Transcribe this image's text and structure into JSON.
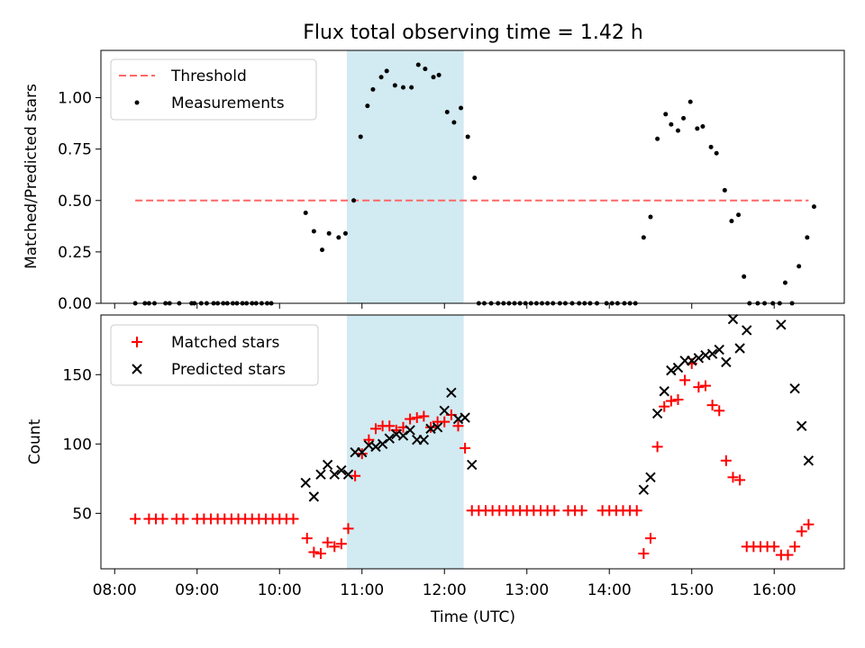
{
  "chart_data": [
    {
      "type": "scatter",
      "title": "Flux total observing time = 1.42 h",
      "xlabel": "",
      "ylabel": "Matched/Predicted stars",
      "xlim": [
        "07:50",
        "16:51"
      ],
      "ylim": [
        0,
        1.23
      ],
      "yticks": [
        0.0,
        0.25,
        0.5,
        0.75,
        1.0
      ],
      "ytick_labels": [
        "0.00",
        "0.25",
        "0.50",
        "0.75",
        "1.00"
      ],
      "shaded_span": [
        "10:49",
        "12:14"
      ],
      "shaded_color": "#add8e6",
      "legend_position": "upper left",
      "series": [
        {
          "name": "Threshold",
          "kind": "line",
          "color": "#ff6666",
          "style": "dashed",
          "points": [
            [
              "08:15",
              0.5
            ],
            [
              "16:25",
              0.5
            ]
          ]
        },
        {
          "name": "Measurements",
          "kind": "scatter",
          "marker": "dot",
          "color": "#000000",
          "points": [
            [
              "08:15",
              0
            ],
            [
              "08:22",
              0
            ],
            [
              "08:25",
              0
            ],
            [
              "08:29",
              0
            ],
            [
              "08:37",
              0
            ],
            [
              "08:40",
              0
            ],
            [
              "08:47",
              0
            ],
            [
              "08:56",
              0
            ],
            [
              "08:58",
              0
            ],
            [
              "09:03",
              0
            ],
            [
              "09:07",
              0
            ],
            [
              "09:12",
              0
            ],
            [
              "09:15",
              0
            ],
            [
              "09:19",
              0
            ],
            [
              "09:22",
              0
            ],
            [
              "09:26",
              0
            ],
            [
              "09:29",
              0
            ],
            [
              "09:33",
              0
            ],
            [
              "09:36",
              0
            ],
            [
              "09:40",
              0
            ],
            [
              "09:43",
              0
            ],
            [
              "09:47",
              0
            ],
            [
              "09:51",
              0
            ],
            [
              "09:54",
              0
            ],
            [
              "10:19",
              0.44
            ],
            [
              "10:25",
              0.35
            ],
            [
              "10:31",
              0.26
            ],
            [
              "10:36",
              0.34
            ],
            [
              "10:43",
              0.32
            ],
            [
              "10:48",
              0.34
            ],
            [
              "10:54",
              0.5
            ],
            [
              "10:59",
              0.81
            ],
            [
              "11:04",
              0.96
            ],
            [
              "11:08",
              1.04
            ],
            [
              "11:14",
              1.1
            ],
            [
              "11:18",
              1.13
            ],
            [
              "11:24",
              1.06
            ],
            [
              "11:30",
              1.05
            ],
            [
              "11:36",
              1.05
            ],
            [
              "11:41",
              1.16
            ],
            [
              "11:46",
              1.14
            ],
            [
              "11:52",
              1.1
            ],
            [
              "11:56",
              1.11
            ],
            [
              "12:02",
              0.93
            ],
            [
              "12:07",
              0.88
            ],
            [
              "12:12",
              0.95
            ],
            [
              "12:17",
              0.81
            ],
            [
              "12:22",
              0.61
            ],
            [
              "12:25",
              0
            ],
            [
              "12:29",
              0
            ],
            [
              "12:34",
              0
            ],
            [
              "12:39",
              0
            ],
            [
              "12:43",
              0
            ],
            [
              "12:47",
              0
            ],
            [
              "12:51",
              0
            ],
            [
              "12:55",
              0
            ],
            [
              "12:59",
              0
            ],
            [
              "13:03",
              0
            ],
            [
              "13:07",
              0
            ],
            [
              "13:11",
              0
            ],
            [
              "13:15",
              0
            ],
            [
              "13:19",
              0
            ],
            [
              "13:24",
              0
            ],
            [
              "13:28",
              0
            ],
            [
              "13:33",
              0
            ],
            [
              "13:38",
              0
            ],
            [
              "13:42",
              0
            ],
            [
              "13:46",
              0
            ],
            [
              "13:51",
              0
            ],
            [
              "13:58",
              0
            ],
            [
              "14:02",
              0
            ],
            [
              "14:06",
              0
            ],
            [
              "14:11",
              0
            ],
            [
              "14:15",
              0
            ],
            [
              "14:19",
              0
            ],
            [
              "14:25",
              0.32
            ],
            [
              "14:30",
              0.42
            ],
            [
              "14:35",
              0.8
            ],
            [
              "14:41",
              0.92
            ],
            [
              "14:45",
              0.87
            ],
            [
              "14:50",
              0.84
            ],
            [
              "14:54",
              0.9
            ],
            [
              "14:59",
              0.98
            ],
            [
              "15:04",
              0.85
            ],
            [
              "15:08",
              0.86
            ],
            [
              "15:14",
              0.76
            ],
            [
              "15:18",
              0.73
            ],
            [
              "15:24",
              0.55
            ],
            [
              "15:29",
              0.4
            ],
            [
              "15:34",
              0.43
            ],
            [
              "15:38",
              0.13
            ],
            [
              "15:42",
              0
            ],
            [
              "15:48",
              0
            ],
            [
              "15:53",
              0
            ],
            [
              "15:59",
              0
            ],
            [
              "16:04",
              0
            ],
            [
              "16:08",
              0.1
            ],
            [
              "16:13",
              0
            ],
            [
              "16:18",
              0.18
            ],
            [
              "16:24",
              0.32
            ],
            [
              "16:29",
              0.47
            ]
          ]
        }
      ]
    },
    {
      "type": "scatter",
      "title": "",
      "xlabel": "Time (UTC)",
      "ylabel": "Count",
      "xlim": [
        "07:50",
        "16:51"
      ],
      "ylim": [
        10,
        193
      ],
      "xticks": [
        "08:00",
        "09:00",
        "10:00",
        "11:00",
        "12:00",
        "13:00",
        "14:00",
        "15:00",
        "16:00"
      ],
      "yticks": [
        50,
        100,
        150
      ],
      "shaded_span": [
        "10:49",
        "12:14"
      ],
      "shaded_color": "#add8e6",
      "legend_position": "upper left",
      "series": [
        {
          "name": "Matched stars",
          "kind": "scatter",
          "marker": "plus",
          "color": "#ff0000",
          "points": [
            [
              "08:15",
              46
            ],
            [
              "08:25",
              46
            ],
            [
              "08:30",
              46
            ],
            [
              "08:35",
              46
            ],
            [
              "08:45",
              46
            ],
            [
              "08:50",
              46
            ],
            [
              "09:00",
              46
            ],
            [
              "09:05",
              46
            ],
            [
              "09:10",
              46
            ],
            [
              "09:15",
              46
            ],
            [
              "09:20",
              46
            ],
            [
              "09:25",
              46
            ],
            [
              "09:30",
              46
            ],
            [
              "09:35",
              46
            ],
            [
              "09:40",
              46
            ],
            [
              "09:45",
              46
            ],
            [
              "09:50",
              46
            ],
            [
              "09:55",
              46
            ],
            [
              "10:00",
              46
            ],
            [
              "10:05",
              46
            ],
            [
              "10:10",
              46
            ],
            [
              "10:20",
              32
            ],
            [
              "10:25",
              22
            ],
            [
              "10:30",
              21
            ],
            [
              "10:35",
              29
            ],
            [
              "10:40",
              26
            ],
            [
              "10:45",
              28
            ],
            [
              "10:50",
              39
            ],
            [
              "10:55",
              77
            ],
            [
              "11:00",
              93
            ],
            [
              "11:05",
              103
            ],
            [
              "11:10",
              111
            ],
            [
              "11:15",
              113
            ],
            [
              "11:20",
              113
            ],
            [
              "11:25",
              110
            ],
            [
              "11:30",
              112
            ],
            [
              "11:35",
              118
            ],
            [
              "11:40",
              119
            ],
            [
              "11:45",
              120
            ],
            [
              "11:50",
              112
            ],
            [
              "11:55",
              116
            ],
            [
              "12:00",
              116
            ],
            [
              "12:05",
              121
            ],
            [
              "12:10",
              113
            ],
            [
              "12:15",
              97
            ],
            [
              "12:20",
              52
            ],
            [
              "12:25",
              52
            ],
            [
              "12:30",
              52
            ],
            [
              "12:35",
              52
            ],
            [
              "12:40",
              52
            ],
            [
              "12:45",
              52
            ],
            [
              "12:50",
              52
            ],
            [
              "12:55",
              52
            ],
            [
              "13:00",
              52
            ],
            [
              "13:05",
              52
            ],
            [
              "13:10",
              52
            ],
            [
              "13:15",
              52
            ],
            [
              "13:20",
              52
            ],
            [
              "13:30",
              52
            ],
            [
              "13:35",
              52
            ],
            [
              "13:40",
              52
            ],
            [
              "13:55",
              52
            ],
            [
              "14:00",
              52
            ],
            [
              "14:05",
              52
            ],
            [
              "14:10",
              52
            ],
            [
              "14:15",
              52
            ],
            [
              "14:20",
              52
            ],
            [
              "14:25",
              21
            ],
            [
              "14:30",
              32
            ],
            [
              "14:35",
              98
            ],
            [
              "14:40",
              127
            ],
            [
              "14:45",
              131
            ],
            [
              "14:50",
              132
            ],
            [
              "14:55",
              146
            ],
            [
              "15:00",
              158
            ],
            [
              "15:05",
              141
            ],
            [
              "15:10",
              142
            ],
            [
              "15:15",
              128
            ],
            [
              "15:20",
              124
            ],
            [
              "15:25",
              88
            ],
            [
              "15:30",
              76
            ],
            [
              "15:35",
              74
            ],
            [
              "15:40",
              26
            ],
            [
              "15:45",
              26
            ],
            [
              "15:50",
              26
            ],
            [
              "15:55",
              26
            ],
            [
              "16:00",
              26
            ],
            [
              "16:05",
              20
            ],
            [
              "16:10",
              20
            ],
            [
              "16:15",
              26
            ],
            [
              "16:20",
              37
            ],
            [
              "16:25",
              42
            ]
          ]
        },
        {
          "name": "Predicted stars",
          "kind": "scatter",
          "marker": "x",
          "color": "#000000",
          "points": [
            [
              "10:19",
              72
            ],
            [
              "10:25",
              62
            ],
            [
              "10:30",
              78
            ],
            [
              "10:35",
              85
            ],
            [
              "10:40",
              78
            ],
            [
              "10:45",
              81
            ],
            [
              "10:50",
              78
            ],
            [
              "10:55",
              94
            ],
            [
              "11:00",
              94
            ],
            [
              "11:05",
              99
            ],
            [
              "11:10",
              98
            ],
            [
              "11:15",
              100
            ],
            [
              "11:20",
              104
            ],
            [
              "11:25",
              107
            ],
            [
              "11:30",
              106
            ],
            [
              "11:35",
              110
            ],
            [
              "11:40",
              103
            ],
            [
              "11:45",
              103
            ],
            [
              "11:50",
              111
            ],
            [
              "11:55",
              112
            ],
            [
              "12:00",
              124
            ],
            [
              "12:05",
              137
            ],
            [
              "12:10",
              118
            ],
            [
              "12:15",
              119
            ],
            [
              "12:20",
              85
            ],
            [
              "14:25",
              67
            ],
            [
              "14:30",
              76
            ],
            [
              "14:35",
              122
            ],
            [
              "14:40",
              138
            ],
            [
              "14:45",
              153
            ],
            [
              "14:50",
              155
            ],
            [
              "14:55",
              160
            ],
            [
              "15:00",
              160
            ],
            [
              "15:05",
              162
            ],
            [
              "15:10",
              164
            ],
            [
              "15:15",
              165
            ],
            [
              "15:20",
              168
            ],
            [
              "15:25",
              159
            ],
            [
              "15:30",
              190
            ],
            [
              "15:35",
              169
            ],
            [
              "15:40",
              182
            ],
            [
              "16:05",
              186
            ],
            [
              "16:15",
              140
            ],
            [
              "16:20",
              113
            ],
            [
              "16:25",
              88
            ]
          ]
        }
      ]
    }
  ]
}
